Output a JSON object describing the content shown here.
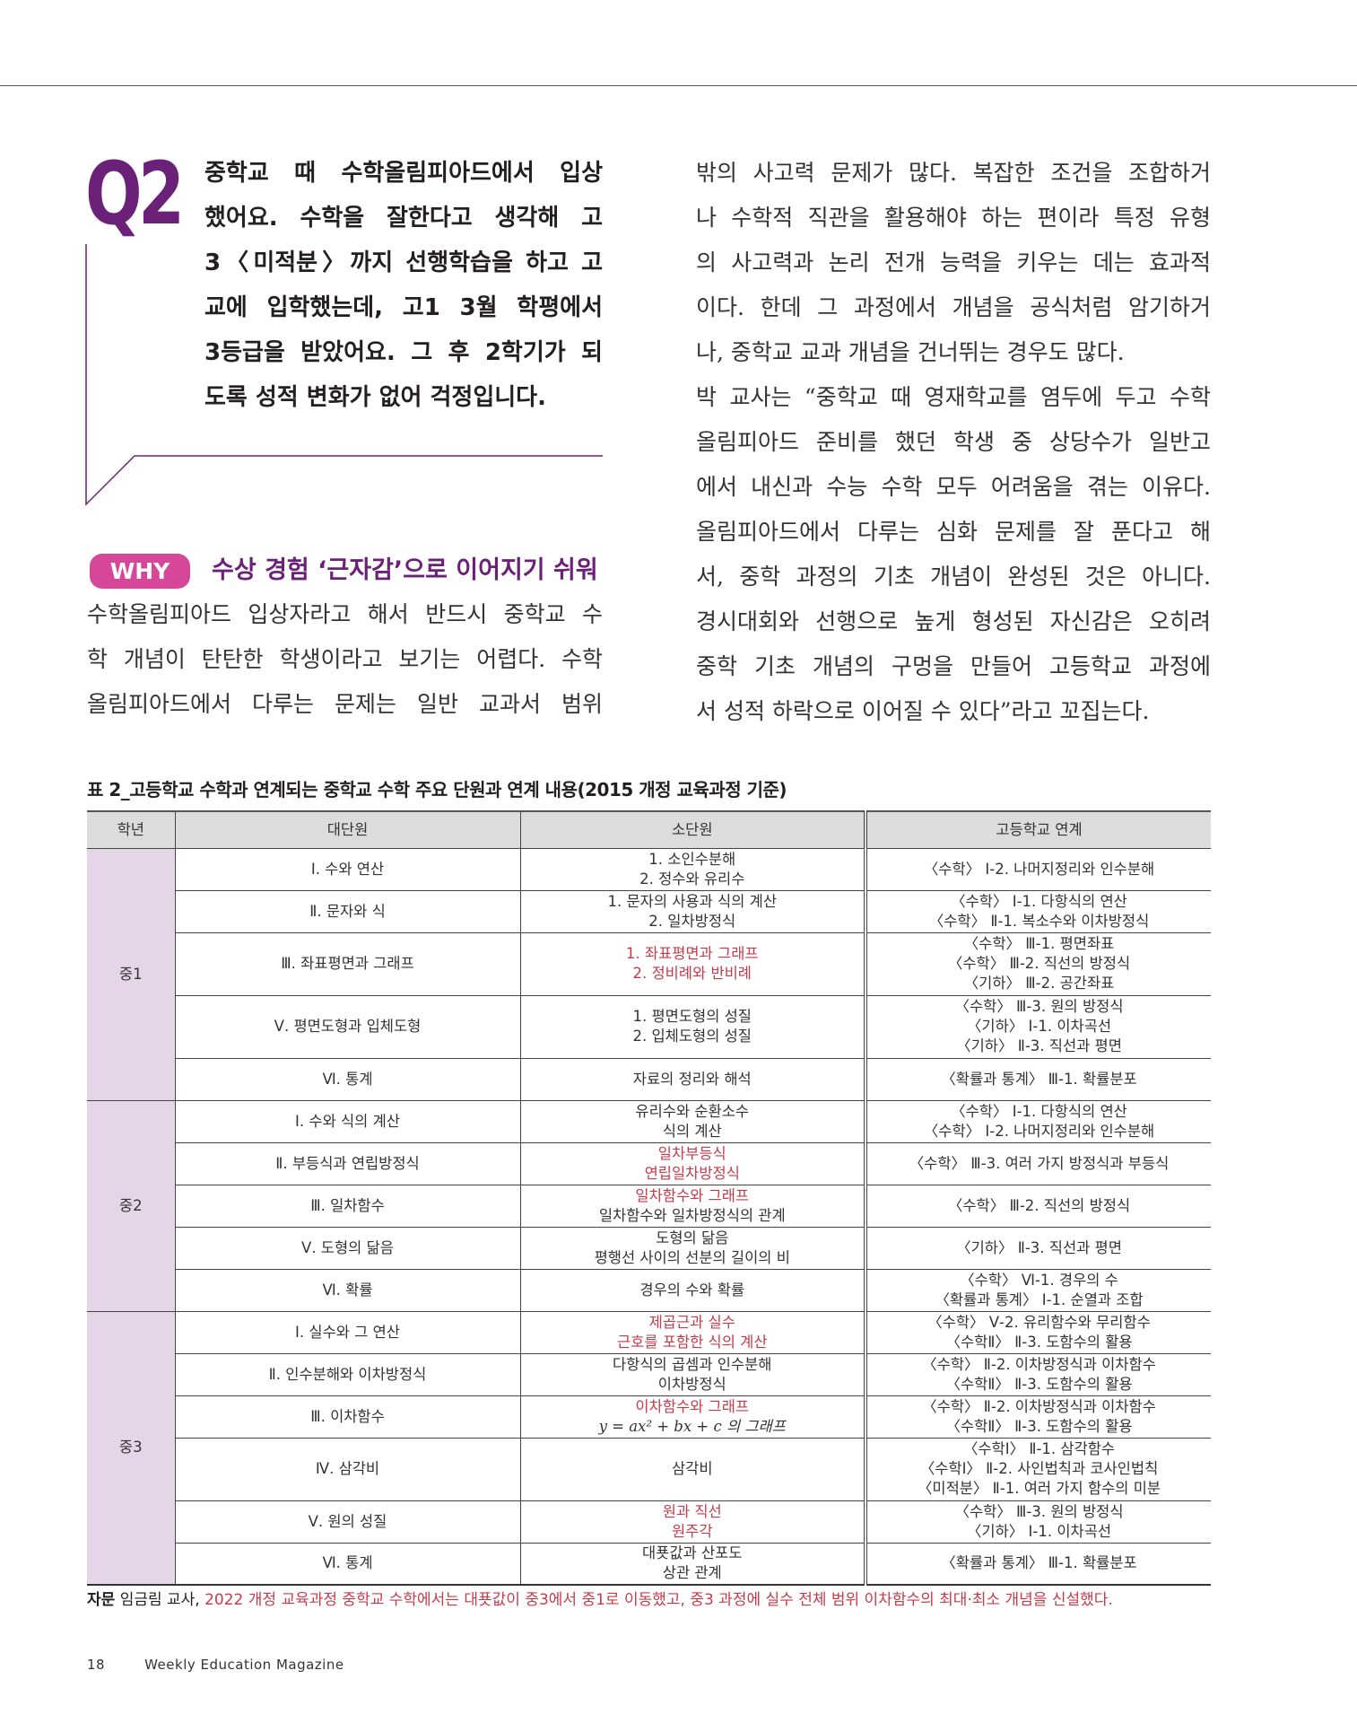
{
  "question": {
    "label": "Q2",
    "lines": [
      "중학교 때 수학올림피아드에서 입상",
      "했어요. 수학을 잘한다고 생각해 고",
      "3〈미적분〉까지 선행학습을 하고 고",
      "교에 입학했는데, 고1 3월 학평에서",
      "3등급을 받았어요. 그 후 2학기가 되",
      "도록 성적 변화가 없어 걱정입니다."
    ]
  },
  "why": {
    "badge": "WHY",
    "heading": "수상 경험 ‘근자감’으로 이어지기 쉬워"
  },
  "left_body": [
    "수학올림피아드 입상자라고 해서 반드시 중학교 수",
    "학 개념이 탄탄한 학생이라고 보기는 어렵다. 수학",
    "올림피아드에서 다루는 문제는 일반 교과서 범위"
  ],
  "right_body": [
    {
      "t": "밖의 사고력 문제가 많다. 복잡한 조건을 조합하거"
    },
    {
      "t": "나 수학적 직관을 활용해야 하는 편이라 특정 유형"
    },
    {
      "t": "의 사고력과 논리 전개 능력을 키우는 데는 효과적"
    },
    {
      "t": "이다. 한데 그 과정에서 개념을 공식처럼 암기하거"
    },
    {
      "t": "나, 중학교 교과 개념을 건너뛰는 경우도 많다.",
      "last": true
    },
    {
      "t": "박 교사는 “중학교 때 영재학교를 염두에 두고 수학"
    },
    {
      "t": "올림피아드 준비를 했던 학생 중 상당수가 일반고"
    },
    {
      "t": "에서 내신과 수능 수학 모두 어려움을 겪는 이유다."
    },
    {
      "t": "올림피아드에서 다루는 심화 문제를 잘 푼다고 해"
    },
    {
      "t": "서, 중학 과정의 기초 개념이 완성된 것은 아니다."
    },
    {
      "t": "경시대회와 선행으로 높게 형성된 자신감은 오히려"
    },
    {
      "t": "중학 기초 개념의 구멍을 만들어 고등학교 과정에"
    },
    {
      "t": "서 성적 하락으로 이어질 수 있다”라고 꼬집는다.",
      "last": true
    }
  ],
  "table": {
    "title": "표 2_고등학교 수학과 연계되는 중학교 수학 주요 단원과 연계 내용(2015 개정 교육과정 기준)",
    "headers": [
      "학년",
      "대단원",
      "소단원",
      "고등학교 연계"
    ],
    "groups": [
      {
        "grade": "중1",
        "rows": [
          {
            "unit": "Ⅰ. 수와 연산",
            "sub": [
              {
                "t": "1. 소인수분해"
              },
              {
                "t": "2. 정수와 유리수"
              }
            ],
            "link": [
              "〈수학〉 Ⅰ-2. 나머지정리와 인수분해"
            ]
          },
          {
            "unit": "Ⅱ. 문자와 식",
            "sub": [
              {
                "t": "1. 문자의 사용과 식의 계산"
              },
              {
                "t": "2. 일차방정식"
              }
            ],
            "link": [
              "〈수학〉 Ⅰ-1. 다항식의 연산",
              "〈수학〉 Ⅱ-1. 복소수와 이차방정식"
            ]
          },
          {
            "unit": "Ⅲ. 좌표평면과 그래프",
            "sub": [
              {
                "t": "1. 좌표평면과 그래프",
                "red": true
              },
              {
                "t": "2. 정비례와 반비례",
                "red": true
              }
            ],
            "link": [
              "〈수학〉 Ⅲ-1. 평면좌표",
              "〈수학〉 Ⅲ-2. 직선의 방정식",
              "〈기하〉 Ⅲ-2. 공간좌표"
            ]
          },
          {
            "unit": "Ⅴ. 평면도형과 입체도형",
            "sub": [
              {
                "t": "1. 평면도형의 성질"
              },
              {
                "t": "2. 입체도형의 성질"
              }
            ],
            "link": [
              "〈수학〉 Ⅲ-3. 원의 방정식",
              "〈기하〉 Ⅰ-1. 이차곡선",
              "〈기하〉 Ⅱ-3. 직선과 평면"
            ]
          },
          {
            "unit": "Ⅵ. 통계",
            "sub": [
              {
                "t": "자료의 정리와 해석"
              }
            ],
            "link": [
              "〈확률과 통계〉 Ⅲ-1. 확률분포"
            ]
          }
        ]
      },
      {
        "grade": "중2",
        "rows": [
          {
            "unit": "Ⅰ. 수와 식의 계산",
            "sub": [
              {
                "t": "유리수와 순환소수"
              },
              {
                "t": "식의 계산"
              }
            ],
            "link": [
              "〈수학〉 Ⅰ-1. 다항식의 연산",
              "〈수학〉 Ⅰ-2. 나머지정리와 인수분해"
            ]
          },
          {
            "unit": "Ⅱ. 부등식과 연립방정식",
            "sub": [
              {
                "t": "일차부등식",
                "red": true
              },
              {
                "t": "연립일차방정식",
                "red": true
              }
            ],
            "link": [
              "〈수학〉 Ⅲ-3. 여러 가지 방정식과 부등식"
            ]
          },
          {
            "unit": "Ⅲ. 일차함수",
            "sub": [
              {
                "t": "일차함수와 그래프",
                "red": true
              },
              {
                "t": "일차함수와 일차방정식의 관계"
              }
            ],
            "link": [
              "〈수학〉 Ⅲ-2. 직선의 방정식"
            ]
          },
          {
            "unit": "Ⅴ. 도형의 닮음",
            "sub": [
              {
                "t": "도형의 닮음"
              },
              {
                "t": "평행선 사이의 선분의 길이의 비"
              }
            ],
            "link": [
              "〈기하〉 Ⅱ-3. 직선과 평면"
            ]
          },
          {
            "unit": "Ⅵ. 확률",
            "sub": [
              {
                "t": "경우의 수와 확률"
              }
            ],
            "link": [
              "〈수학〉 Ⅵ-1. 경우의 수",
              "〈확률과 통계〉 Ⅰ-1. 순열과 조합"
            ]
          }
        ]
      },
      {
        "grade": "중3",
        "rows": [
          {
            "unit": "Ⅰ. 실수와 그 연산",
            "sub": [
              {
                "t": "제곱근과 실수",
                "red": true
              },
              {
                "t": "근호를 포함한 식의 계산",
                "red": true
              }
            ],
            "link": [
              "〈수학〉 Ⅴ-2. 유리함수와 무리함수",
              "〈수학Ⅱ〉 Ⅱ-3. 도함수의 활용"
            ]
          },
          {
            "unit": "Ⅱ. 인수분해와 이차방정식",
            "sub": [
              {
                "t": "다항식의 곱셈과 인수분해"
              },
              {
                "t": "이차방정식"
              }
            ],
            "link": [
              "〈수학〉 Ⅱ-2. 이차방정식과 이차함수",
              "〈수학Ⅱ〉 Ⅱ-3. 도함수의 활용"
            ]
          },
          {
            "unit": "Ⅲ. 이차함수",
            "sub": [
              {
                "t": "이차함수와 그래프",
                "red": true
              },
              {
                "t": "y = ax² + bx + c 의 그래프",
                "math": true
              }
            ],
            "link": [
              "〈수학〉 Ⅱ-2. 이차방정식과 이차함수",
              "〈수학Ⅱ〉 Ⅱ-3. 도함수의 활용"
            ]
          },
          {
            "unit": "Ⅳ. 삼각비",
            "sub": [
              {
                "t": "삼각비"
              }
            ],
            "link": [
              "〈수학Ⅰ〉 Ⅱ-1. 삼각함수",
              "〈수학Ⅰ〉 Ⅱ-2. 사인법칙과 코사인법칙",
              "〈미적분〉 Ⅱ-1. 여러 가지 함수의 미분"
            ]
          },
          {
            "unit": "Ⅴ. 원의 성질",
            "sub": [
              {
                "t": "원과 직선",
                "red": true
              },
              {
                "t": "원주각",
                "red": true
              }
            ],
            "link": [
              "〈수학〉 Ⅲ-3. 원의 방정식",
              "〈기하〉 Ⅰ-1. 이차곡선"
            ]
          },
          {
            "unit": "Ⅵ. 통계",
            "sub": [
              {
                "t": "대푯값과 산포도"
              },
              {
                "t": "상관 관계"
              }
            ],
            "link": [
              "〈확률과 통계〉 Ⅲ-1. 확률분포"
            ]
          }
        ]
      }
    ]
  },
  "footnote": {
    "label": "자문",
    "advisor": "임금림 교사,",
    "note": "2022 개정 교육과정 중학교 수학에서는 대푯값이 중3에서 중1로 이동했고, 중3 과정에 실수 전체 범위 이차함수의 최대·최소 개념을 신설했다."
  },
  "page_footer": {
    "page": "18",
    "magazine": "Weekly Education Magazine"
  },
  "colors": {
    "accent_purple": "#6b2178",
    "why_pink": "#d6479a",
    "highlight_red": "#c63b4b",
    "grade_bg": "#e5d6e7",
    "header_bg": "#dcdcdc"
  }
}
